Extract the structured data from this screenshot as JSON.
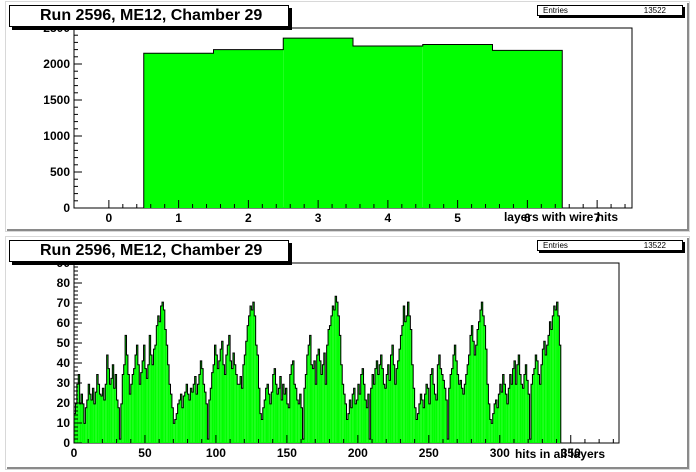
{
  "chart_data": [
    {
      "type": "histogram",
      "title": "Run 2596, ME12, Chamber 29",
      "stats": {
        "label": "Entries",
        "value": "13522"
      },
      "xlabel": "layers with wire hits",
      "ylabel": "",
      "xlim": [
        -0.5,
        7.5
      ],
      "ylim": [
        0,
        2500
      ],
      "xticks": [
        "0",
        "1",
        "2",
        "3",
        "4",
        "5",
        "6",
        "7"
      ],
      "yticks": [
        "0",
        "500",
        "1000",
        "1500",
        "2000",
        "2500"
      ],
      "bin_edges": [
        0.5,
        1.5,
        2.5,
        3.5,
        4.5,
        5.5,
        6.5
      ],
      "values": [
        2150,
        2200,
        2360,
        2250,
        2270,
        2190
      ],
      "fill": "#00ff00"
    },
    {
      "type": "histogram",
      "title": "Run 2596, ME12, Chamber 29",
      "stats": {
        "label": "Entries",
        "value": "13522"
      },
      "xlabel": "hits in all layers",
      "ylabel": "",
      "xlim": [
        0,
        384
      ],
      "ylim": [
        0,
        92
      ],
      "xticks": [
        "0",
        "50",
        "100",
        "150",
        "200",
        "250",
        "300",
        "350"
      ],
      "yticks": [
        "0",
        "10",
        "20",
        "30",
        "40",
        "50",
        "60",
        "70",
        "80",
        "90"
      ],
      "bin_width": 1,
      "values": [
        15,
        20,
        30,
        35,
        20,
        25,
        20,
        10,
        18,
        22,
        30,
        25,
        22,
        28,
        20,
        26,
        35,
        30,
        25,
        24,
        28,
        22,
        30,
        45,
        38,
        30,
        33,
        40,
        28,
        35,
        22,
        18,
        2,
        20,
        35,
        40,
        55,
        45,
        35,
        25,
        30,
        35,
        38,
        45,
        50,
        40,
        30,
        36,
        42,
        50,
        38,
        33,
        40,
        55,
        45,
        40,
        48,
        50,
        60,
        65,
        62,
        70,
        72,
        68,
        58,
        50,
        40,
        30,
        25,
        18,
        10,
        12,
        15,
        20,
        22,
        25,
        18,
        24,
        26,
        30,
        25,
        22,
        28,
        26,
        30,
        34,
        25,
        30,
        35,
        42,
        38,
        30,
        26,
        20,
        2,
        22,
        28,
        36,
        40,
        50,
        45,
        38,
        42,
        48,
        52,
        40,
        35,
        45,
        50,
        55,
        42,
        38,
        46,
        40,
        35,
        30,
        30,
        34,
        28,
        40,
        45,
        52,
        60,
        65,
        70,
        68,
        72,
        65,
        50,
        45,
        28,
        15,
        12,
        18,
        22,
        28,
        30,
        25,
        20,
        26,
        35,
        38,
        30,
        25,
        28,
        34,
        22,
        30,
        25,
        28,
        20,
        18,
        35,
        40,
        42,
        30,
        28,
        22,
        20,
        25,
        18,
        2,
        28,
        35,
        45,
        50,
        55,
        40,
        38,
        42,
        30,
        45,
        48,
        42,
        35,
        40,
        46,
        30,
        50,
        58,
        60,
        65,
        70,
        68,
        75,
        72,
        65,
        55,
        40,
        30,
        25,
        20,
        12,
        15,
        22,
        18,
        25,
        28,
        20,
        22,
        30,
        25,
        35,
        38,
        30,
        22,
        18,
        25,
        2,
        28,
        35,
        30,
        38,
        42,
        35,
        40,
        45,
        38,
        30,
        28,
        35,
        40,
        32,
        45,
        50,
        40,
        30,
        38,
        42,
        48,
        55,
        60,
        70,
        62,
        65,
        72,
        65,
        58,
        40,
        28,
        18,
        12,
        15,
        20,
        25,
        22,
        18,
        25,
        30,
        28,
        20,
        35,
        38,
        30,
        25,
        22,
        40,
        45,
        38,
        35,
        32,
        28,
        22,
        2,
        28,
        35,
        38,
        45,
        50,
        42,
        35,
        30,
        32,
        28,
        25,
        30,
        35,
        40,
        45,
        55,
        60,
        52,
        45,
        50,
        58,
        62,
        68,
        72,
        65,
        60,
        48,
        30,
        20,
        12,
        10,
        15,
        20,
        22,
        18,
        25,
        30,
        26,
        35,
        30,
        25,
        20,
        28,
        35,
        30,
        38,
        42,
        30,
        40,
        45,
        35,
        30,
        28,
        35,
        40,
        32,
        25,
        2,
        30,
        35,
        38,
        45,
        42,
        35,
        30,
        40,
        48,
        52,
        45,
        50,
        55,
        62,
        58,
        65,
        70,
        68,
        72,
        65,
        50
      ],
      "fill": "#00ff00"
    }
  ]
}
